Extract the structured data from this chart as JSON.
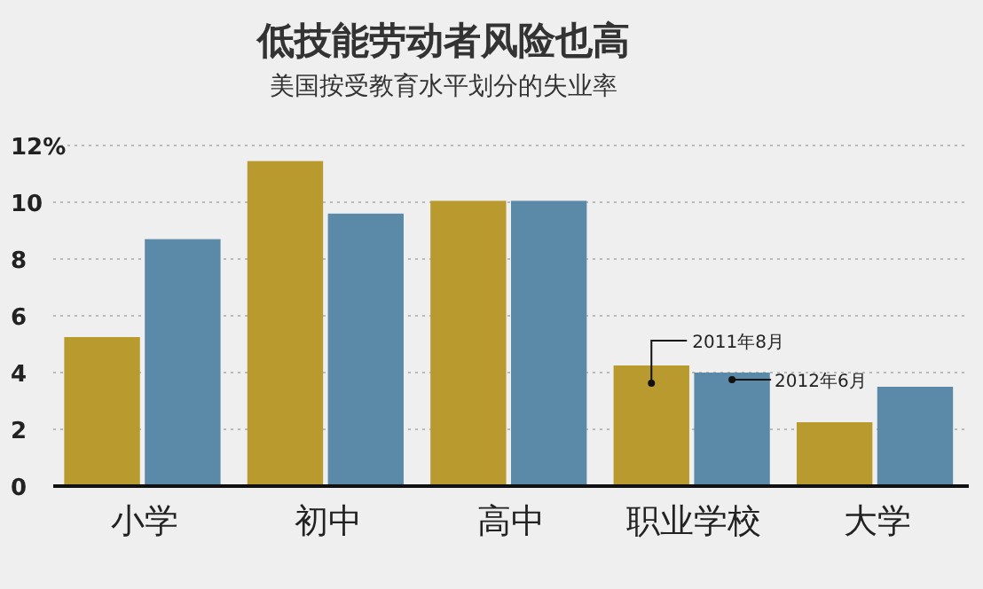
{
  "chart_data": {
    "type": "bar",
    "title": "低技能劳动者风险也高",
    "subtitle": "美国按受教育水平划分的失业率",
    "categories": [
      "小学",
      "初中",
      "高中",
      "职业学校",
      "大学"
    ],
    "series": [
      {
        "name": "2011年8月",
        "color": "#b99a2e",
        "values": [
          5.25,
          11.45,
          10.05,
          4.25,
          2.25
        ]
      },
      {
        "name": "2012年6月",
        "color": "#5b89a8",
        "values": [
          8.7,
          9.6,
          10.05,
          4.0,
          3.5
        ]
      }
    ],
    "ylim": [
      0,
      12
    ],
    "yticks": [
      0,
      2,
      4,
      6,
      8,
      10,
      {
        "value": 12,
        "label": "12%"
      }
    ],
    "grid": "y"
  }
}
